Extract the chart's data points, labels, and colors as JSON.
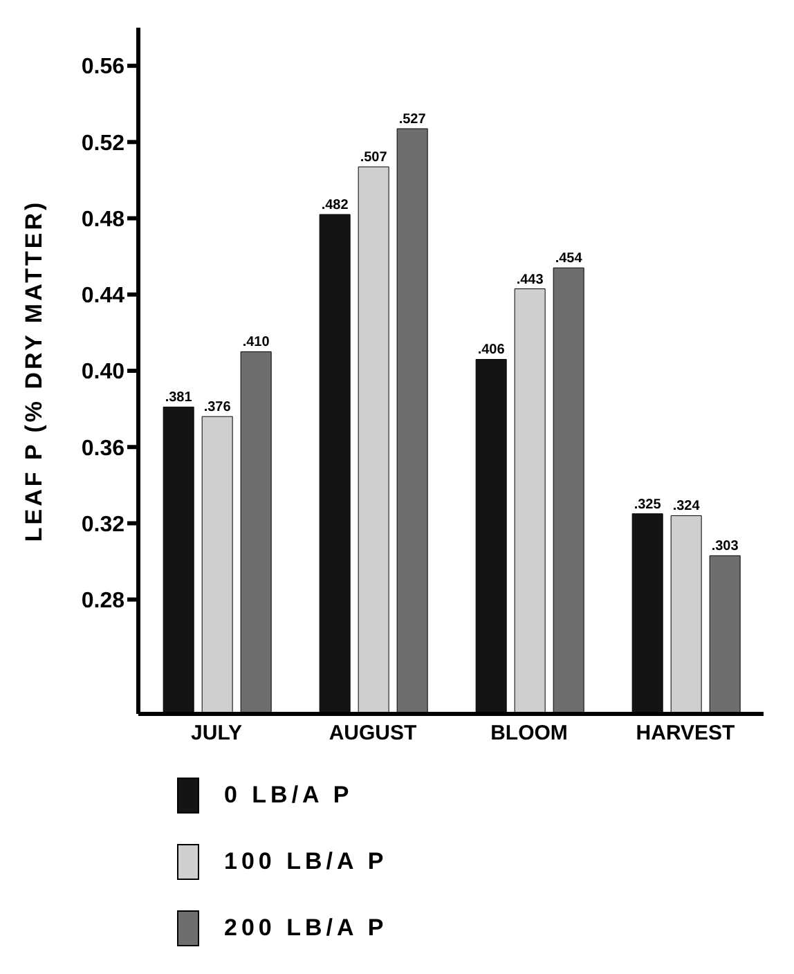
{
  "chart_data": {
    "type": "bar",
    "ylabel": "LEAF P (% DRY MATTER)",
    "categories": [
      "JULY",
      "AUGUST",
      "BLOOM",
      "HARVEST"
    ],
    "series": [
      {
        "name": "0 LB/A P",
        "color": "#141414",
        "values": [
          0.381,
          0.482,
          0.406,
          0.325
        ],
        "value_labels": [
          ".381",
          ".482",
          ".406",
          ".325"
        ]
      },
      {
        "name": "100 LB/A P",
        "color": "#cfcfcf",
        "values": [
          0.376,
          0.507,
          0.443,
          0.324
        ],
        "value_labels": [
          ".376",
          ".507",
          ".443",
          ".324"
        ]
      },
      {
        "name": "200 LB/A P",
        "color": "#6e6e6e",
        "values": [
          0.41,
          0.527,
          0.454,
          0.303
        ],
        "value_labels": [
          ".410",
          ".527",
          ".454",
          ".303"
        ]
      }
    ],
    "ylim": [
      0.22,
      0.58
    ],
    "yticks": [
      0.28,
      0.32,
      0.36,
      {
        "value": 0.4,
        "label": "0.40"
      },
      0.44,
      0.48,
      0.52,
      0.56
    ],
    "grid": false,
    "legend": "bottom left"
  }
}
